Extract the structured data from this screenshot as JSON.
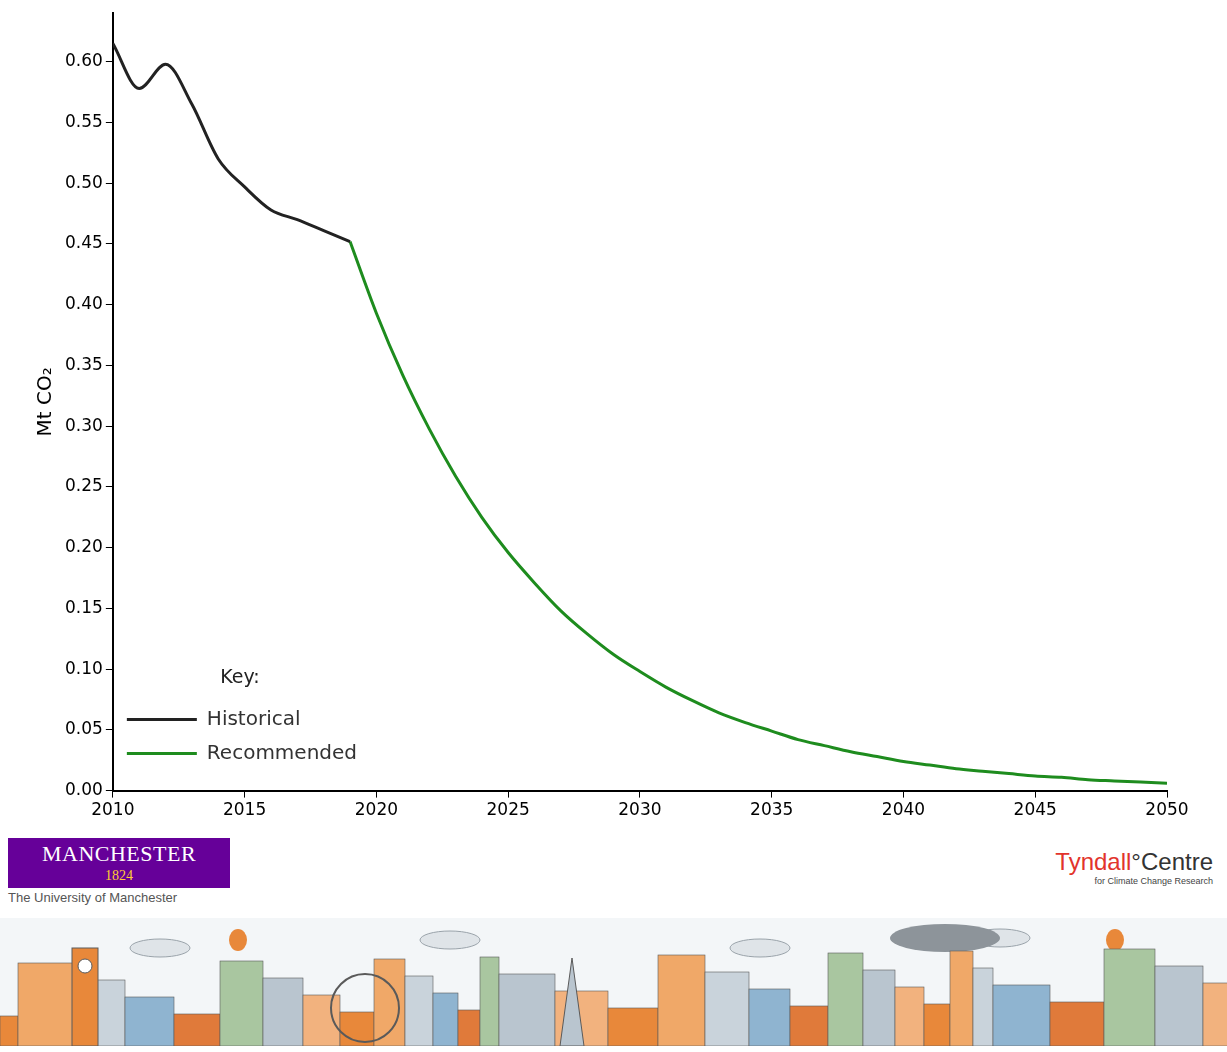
{
  "chart_data": {
    "type": "line",
    "y_label": "Mt CO₂",
    "legend_title": "Key:",
    "series": [
      {
        "name": "Historical",
        "color": "#222222",
        "x": [
          2010,
          2011,
          2012,
          2013,
          2014,
          2015,
          2016,
          2017,
          2018,
          2019
        ],
        "values": [
          0.615,
          0.578,
          0.598,
          0.565,
          0.52,
          0.497,
          0.478,
          0.47,
          0.461,
          0.452
        ]
      },
      {
        "name": "Recommended",
        "color": "#1e8c1e",
        "x": [
          2019,
          2020,
          2021,
          2022,
          2023,
          2024,
          2025,
          2026,
          2027,
          2028,
          2029,
          2030,
          2031,
          2032,
          2033,
          2034,
          2035,
          2036,
          2037,
          2038,
          2039,
          2040,
          2041,
          2042,
          2043,
          2044,
          2045,
          2046,
          2047,
          2048,
          2049,
          2050
        ],
        "values": [
          0.452,
          0.393,
          0.342,
          0.298,
          0.259,
          0.225,
          0.196,
          0.171,
          0.148,
          0.129,
          0.112,
          0.098,
          0.085,
          0.074,
          0.064,
          0.056,
          0.049,
          0.042,
          0.037,
          0.032,
          0.028,
          0.024,
          0.021,
          0.018,
          0.016,
          0.014,
          0.012,
          0.011,
          0.009,
          0.008,
          0.007,
          0.006
        ]
      }
    ],
    "xlim": [
      2010,
      2050
    ],
    "xticks": [
      2010,
      2015,
      2020,
      2025,
      2030,
      2035,
      2040,
      2045,
      2050
    ],
    "ylim": [
      0,
      0.64
    ],
    "yticks": [
      {
        "value": 0,
        "label": "0.00"
      },
      {
        "value": 0.05,
        "label": "0.05"
      },
      {
        "value": 0.1,
        "label": "0.10"
      },
      {
        "value": 0.15,
        "label": "0.15"
      },
      {
        "value": 0.2,
        "label": "0.20"
      },
      {
        "value": 0.25,
        "label": "0.25"
      },
      {
        "value": 0.3,
        "label": "0.30"
      },
      {
        "value": 0.35,
        "label": "0.35"
      },
      {
        "value": 0.4,
        "label": "0.40"
      },
      {
        "value": 0.45,
        "label": "0.45"
      },
      {
        "value": 0.5,
        "label": "0.50"
      },
      {
        "value": 0.55,
        "label": "0.55"
      },
      {
        "value": 0.6,
        "label": "0.60"
      }
    ],
    "grid": false,
    "legend": "upper right"
  },
  "footer": {
    "left": {
      "name": "MANCHESTER",
      "year": "1824",
      "subtitle": "The University of Manchester"
    },
    "right": {
      "name": "Tyndall°Centre",
      "subtitle": "for Climate Change Research"
    }
  }
}
